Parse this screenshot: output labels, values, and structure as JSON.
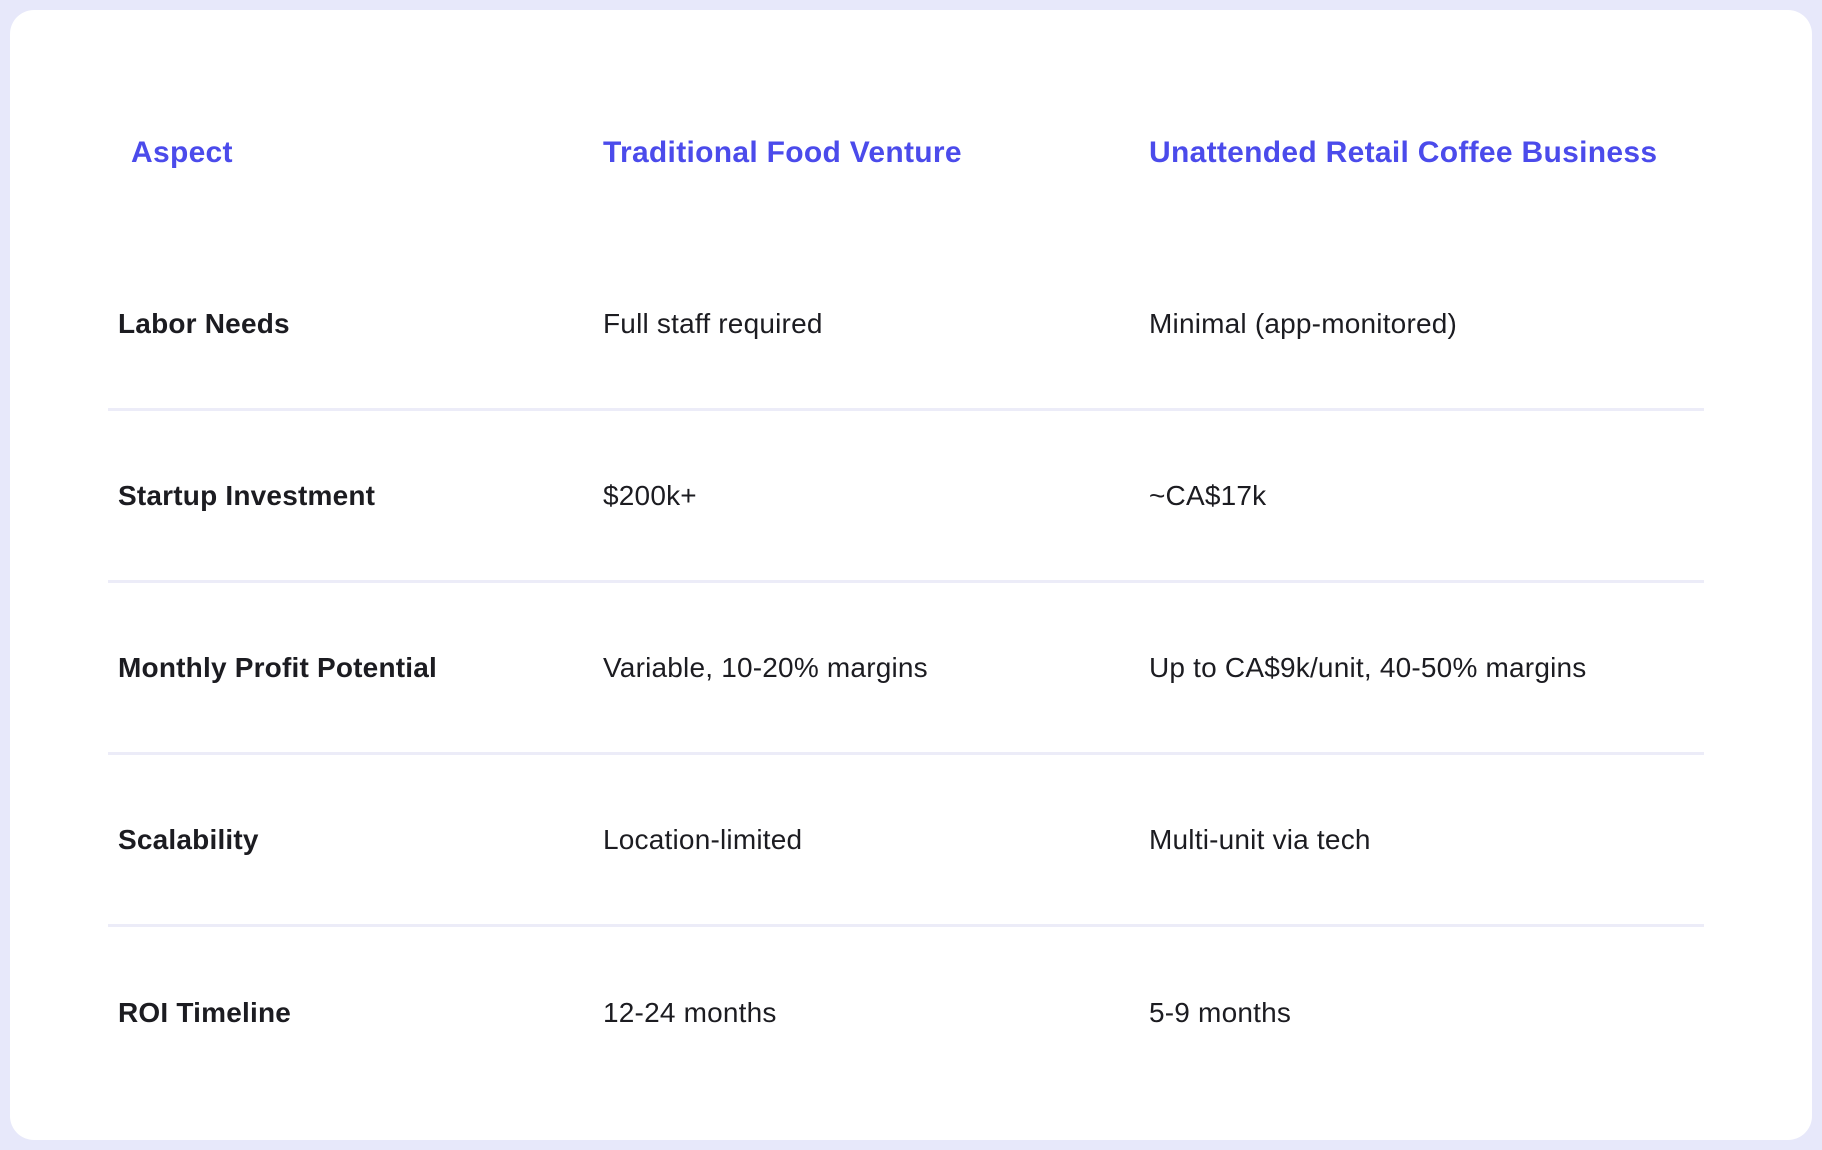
{
  "table": {
    "columns": [
      {
        "label": "Aspect"
      },
      {
        "label": "Traditional Food Venture"
      },
      {
        "label": "Unattended Retail Coffee Business"
      }
    ],
    "rows": [
      {
        "aspect": "Labor Needs",
        "traditional": "Full staff required",
        "unattended": "Minimal (app-monitored)"
      },
      {
        "aspect": "Startup Investment",
        "traditional": "$200k+",
        "unattended": "~CA$17k"
      },
      {
        "aspect": "Monthly Profit Potential",
        "traditional": "Variable, 10-20% margins",
        "unattended": "Up to CA$9k/unit, 40-50% margins"
      },
      {
        "aspect": "Scalability",
        "traditional": "Location-limited",
        "unattended": "Multi-unit via tech"
      },
      {
        "aspect": "ROI Timeline",
        "traditional": "12-24 months",
        "unattended": "5-9 months"
      }
    ]
  },
  "colors": {
    "header_text": "#4B4BEB",
    "body_text": "#1C1C21",
    "divider": "#ECECF8",
    "page_background": "#E7E8FA",
    "card_background": "#FFFFFF"
  }
}
